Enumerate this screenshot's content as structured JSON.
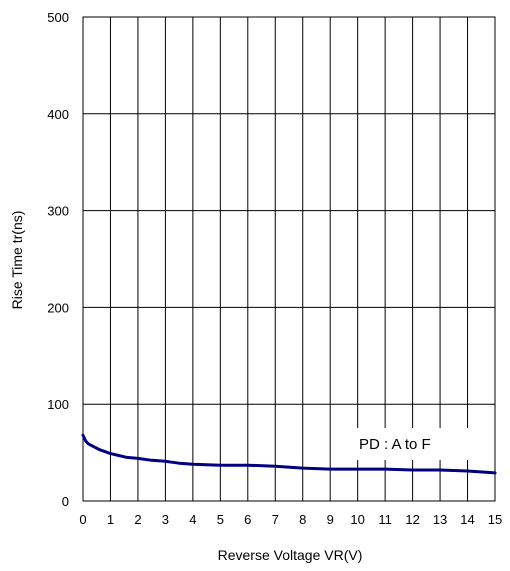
{
  "chart_data": {
    "type": "line",
    "title": "",
    "xlabel": "Reverse Voltage VR(V)",
    "ylabel": "Rise Time  tr(ns)",
    "xlim": [
      0,
      15
    ],
    "ylim": [
      0,
      500
    ],
    "xticks": [
      "0",
      "1",
      "2",
      "3",
      "4",
      "5",
      "6",
      "7",
      "8",
      "9",
      "10",
      "11",
      "12",
      "13",
      "14",
      "15"
    ],
    "yticks": [
      "0",
      "100",
      "200",
      "300",
      "400",
      "500"
    ],
    "grid": true,
    "line_color": "#000080",
    "annotation": "PD : A to F",
    "series": [
      {
        "name": "",
        "x": [
          0,
          0.1,
          0.2,
          0.4,
          0.6,
          0.8,
          1.0,
          1.3,
          1.6,
          2.0,
          2.5,
          3.0,
          3.5,
          4.0,
          5.0,
          6.0,
          7.0,
          8.0,
          9.0,
          10.0,
          11.0,
          12.0,
          13.0,
          14.0,
          15.0
        ],
        "y": [
          68,
          62,
          59,
          56,
          53,
          51,
          49,
          47,
          45,
          44,
          42,
          41,
          39,
          38,
          37,
          37,
          36,
          34,
          33,
          33,
          33,
          32,
          32,
          31,
          29
        ]
      }
    ]
  }
}
